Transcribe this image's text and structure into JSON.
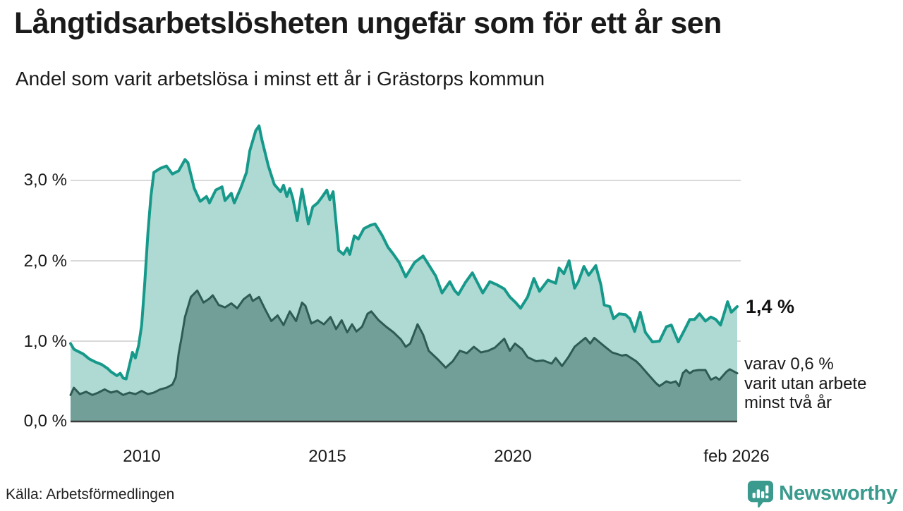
{
  "header": {
    "title": "Långtidsarbetslösheten ungefär som för ett år sen",
    "subtitle": "Andel som varit arbetslösa i minst ett år i Grästorps kommun"
  },
  "annotations": {
    "total_value_label": "1,4 %",
    "subset_line1": "varav 0,6 %",
    "subset_line2": "varit utan arbete",
    "subset_line3": "minst två år"
  },
  "footer": {
    "source": "Källa: Arbetsförmedlingen",
    "brand_name": "Newsworthy",
    "brand_icon": "speech-bubble-bar-chart",
    "brand_color": "#399a8d"
  },
  "colors": {
    "background": "#ffffff",
    "text": "#1a1a1a",
    "gridline": "#d9d9d9",
    "baseline": "#3a3a3a",
    "series1_line": "#16998a",
    "series1_fill": "#aedad3",
    "series2_line": "#2e5b54",
    "series2_fill": "#72a099"
  },
  "chart_data": {
    "type": "area",
    "title": "Långtidsarbetslösheten ungefär som för ett år sen",
    "subtitle": "Andel som varit arbetslösa i minst ett år i Grästorps kommun",
    "unit": "%",
    "grid": true,
    "legend": "none (annotated at line ends)",
    "x_axis": {
      "range": [
        2008.08,
        2026.08
      ],
      "tick_values": [
        2010,
        2015,
        2020,
        2026.08
      ],
      "tick_labels": [
        "2010",
        "2015",
        "2020",
        "feb 2026"
      ]
    },
    "y_axis": {
      "range": [
        0,
        3.85
      ],
      "tick_values": [
        0,
        1,
        2,
        3
      ],
      "tick_labels": [
        "0,0 %",
        "1,0 %",
        "2,0 %",
        "3,0 %"
      ]
    },
    "series": [
      {
        "name": "Arbetslösa minst ett år",
        "line_color": "#16998a",
        "fill_color": "#aedad3",
        "line_width": 4,
        "end_value": 1.4,
        "end_label": "1,4 %",
        "points": [
          [
            2008.08,
            0.97
          ],
          [
            2008.17,
            0.9
          ],
          [
            2008.25,
            0.88
          ],
          [
            2008.42,
            0.84
          ],
          [
            2008.58,
            0.78
          ],
          [
            2008.75,
            0.74
          ],
          [
            2008.92,
            0.71
          ],
          [
            2009.08,
            0.66
          ],
          [
            2009.17,
            0.62
          ],
          [
            2009.33,
            0.57
          ],
          [
            2009.42,
            0.6
          ],
          [
            2009.5,
            0.54
          ],
          [
            2009.58,
            0.53
          ],
          [
            2009.67,
            0.7
          ],
          [
            2009.75,
            0.86
          ],
          [
            2009.83,
            0.79
          ],
          [
            2009.92,
            0.95
          ],
          [
            2010.0,
            1.2
          ],
          [
            2010.08,
            1.7
          ],
          [
            2010.17,
            2.35
          ],
          [
            2010.25,
            2.8
          ],
          [
            2010.33,
            3.1
          ],
          [
            2010.5,
            3.15
          ],
          [
            2010.67,
            3.18
          ],
          [
            2010.83,
            3.08
          ],
          [
            2011.0,
            3.12
          ],
          [
            2011.17,
            3.26
          ],
          [
            2011.25,
            3.22
          ],
          [
            2011.42,
            2.9
          ],
          [
            2011.58,
            2.74
          ],
          [
            2011.75,
            2.8
          ],
          [
            2011.83,
            2.72
          ],
          [
            2012.0,
            2.88
          ],
          [
            2012.17,
            2.92
          ],
          [
            2012.25,
            2.75
          ],
          [
            2012.42,
            2.84
          ],
          [
            2012.5,
            2.72
          ],
          [
            2012.67,
            2.9
          ],
          [
            2012.83,
            3.1
          ],
          [
            2012.92,
            3.37
          ],
          [
            2013.08,
            3.62
          ],
          [
            2013.17,
            3.68
          ],
          [
            2013.25,
            3.5
          ],
          [
            2013.42,
            3.18
          ],
          [
            2013.58,
            2.95
          ],
          [
            2013.75,
            2.86
          ],
          [
            2013.83,
            2.94
          ],
          [
            2013.92,
            2.8
          ],
          [
            2014.0,
            2.9
          ],
          [
            2014.08,
            2.78
          ],
          [
            2014.2,
            2.5
          ],
          [
            2014.33,
            2.89
          ],
          [
            2014.5,
            2.46
          ],
          [
            2014.62,
            2.67
          ],
          [
            2014.75,
            2.72
          ],
          [
            2014.88,
            2.8
          ],
          [
            2015.0,
            2.88
          ],
          [
            2015.08,
            2.76
          ],
          [
            2015.17,
            2.86
          ],
          [
            2015.32,
            2.13
          ],
          [
            2015.45,
            2.08
          ],
          [
            2015.55,
            2.16
          ],
          [
            2015.62,
            2.08
          ],
          [
            2015.74,
            2.31
          ],
          [
            2015.85,
            2.27
          ],
          [
            2016.0,
            2.4
          ],
          [
            2016.17,
            2.44
          ],
          [
            2016.3,
            2.46
          ],
          [
            2016.5,
            2.31
          ],
          [
            2016.65,
            2.17
          ],
          [
            2016.8,
            2.08
          ],
          [
            2016.95,
            1.98
          ],
          [
            2017.13,
            1.8
          ],
          [
            2017.37,
            1.98
          ],
          [
            2017.6,
            2.06
          ],
          [
            2017.75,
            1.95
          ],
          [
            2017.94,
            1.81
          ],
          [
            2018.11,
            1.6
          ],
          [
            2018.32,
            1.74
          ],
          [
            2018.45,
            1.63
          ],
          [
            2018.55,
            1.58
          ],
          [
            2018.74,
            1.73
          ],
          [
            2018.93,
            1.85
          ],
          [
            2019.12,
            1.68
          ],
          [
            2019.21,
            1.6
          ],
          [
            2019.4,
            1.74
          ],
          [
            2019.6,
            1.7
          ],
          [
            2019.79,
            1.65
          ],
          [
            2019.94,
            1.55
          ],
          [
            2020.1,
            1.48
          ],
          [
            2020.23,
            1.41
          ],
          [
            2020.42,
            1.55
          ],
          [
            2020.59,
            1.78
          ],
          [
            2020.74,
            1.62
          ],
          [
            2020.97,
            1.76
          ],
          [
            2021.18,
            1.72
          ],
          [
            2021.27,
            1.91
          ],
          [
            2021.4,
            1.84
          ],
          [
            2021.54,
            2.0
          ],
          [
            2021.69,
            1.66
          ],
          [
            2021.79,
            1.74
          ],
          [
            2021.94,
            1.93
          ],
          [
            2022.07,
            1.82
          ],
          [
            2022.26,
            1.94
          ],
          [
            2022.4,
            1.7
          ],
          [
            2022.49,
            1.45
          ],
          [
            2022.64,
            1.43
          ],
          [
            2022.74,
            1.28
          ],
          [
            2022.89,
            1.34
          ],
          [
            2023.06,
            1.33
          ],
          [
            2023.18,
            1.28
          ],
          [
            2023.31,
            1.12
          ],
          [
            2023.46,
            1.36
          ],
          [
            2023.6,
            1.11
          ],
          [
            2023.79,
            0.99
          ],
          [
            2023.98,
            1.0
          ],
          [
            2024.17,
            1.18
          ],
          [
            2024.3,
            1.2
          ],
          [
            2024.49,
            0.99
          ],
          [
            2024.68,
            1.16
          ],
          [
            2024.8,
            1.27
          ],
          [
            2024.93,
            1.27
          ],
          [
            2025.06,
            1.34
          ],
          [
            2025.22,
            1.25
          ],
          [
            2025.37,
            1.3
          ],
          [
            2025.5,
            1.27
          ],
          [
            2025.63,
            1.2
          ],
          [
            2025.82,
            1.49
          ],
          [
            2025.92,
            1.36
          ],
          [
            2026.08,
            1.43
          ]
        ]
      },
      {
        "name": "Varav utan arbete minst två år",
        "line_color": "#2e5b54",
        "fill_color": "#72a099",
        "line_width": 3,
        "end_value": 0.6,
        "end_label": "varav 0,6 % varit utan arbete minst två år",
        "points": [
          [
            2008.08,
            0.33
          ],
          [
            2008.17,
            0.42
          ],
          [
            2008.33,
            0.34
          ],
          [
            2008.5,
            0.37
          ],
          [
            2008.67,
            0.33
          ],
          [
            2008.83,
            0.36
          ],
          [
            2009.0,
            0.4
          ],
          [
            2009.17,
            0.36
          ],
          [
            2009.33,
            0.38
          ],
          [
            2009.5,
            0.33
          ],
          [
            2009.67,
            0.36
          ],
          [
            2009.83,
            0.34
          ],
          [
            2010.0,
            0.38
          ],
          [
            2010.17,
            0.34
          ],
          [
            2010.33,
            0.36
          ],
          [
            2010.5,
            0.4
          ],
          [
            2010.67,
            0.42
          ],
          [
            2010.83,
            0.46
          ],
          [
            2010.92,
            0.55
          ],
          [
            2011.0,
            0.85
          ],
          [
            2011.08,
            1.05
          ],
          [
            2011.17,
            1.3
          ],
          [
            2011.33,
            1.55
          ],
          [
            2011.5,
            1.63
          ],
          [
            2011.67,
            1.48
          ],
          [
            2011.83,
            1.53
          ],
          [
            2011.92,
            1.57
          ],
          [
            2012.08,
            1.45
          ],
          [
            2012.25,
            1.42
          ],
          [
            2012.42,
            1.47
          ],
          [
            2012.58,
            1.41
          ],
          [
            2012.75,
            1.52
          ],
          [
            2012.92,
            1.58
          ],
          [
            2013.0,
            1.5
          ],
          [
            2013.17,
            1.55
          ],
          [
            2013.33,
            1.4
          ],
          [
            2013.5,
            1.25
          ],
          [
            2013.67,
            1.32
          ],
          [
            2013.83,
            1.2
          ],
          [
            2014.0,
            1.37
          ],
          [
            2014.17,
            1.25
          ],
          [
            2014.33,
            1.48
          ],
          [
            2014.42,
            1.44
          ],
          [
            2014.58,
            1.22
          ],
          [
            2014.75,
            1.26
          ],
          [
            2014.92,
            1.21
          ],
          [
            2015.1,
            1.3
          ],
          [
            2015.25,
            1.15
          ],
          [
            2015.4,
            1.26
          ],
          [
            2015.55,
            1.11
          ],
          [
            2015.68,
            1.21
          ],
          [
            2015.8,
            1.12
          ],
          [
            2015.95,
            1.18
          ],
          [
            2016.1,
            1.34
          ],
          [
            2016.2,
            1.37
          ],
          [
            2016.4,
            1.26
          ],
          [
            2016.6,
            1.18
          ],
          [
            2016.8,
            1.11
          ],
          [
            2017.0,
            1.02
          ],
          [
            2017.13,
            0.93
          ],
          [
            2017.25,
            0.97
          ],
          [
            2017.45,
            1.21
          ],
          [
            2017.6,
            1.08
          ],
          [
            2017.75,
            0.88
          ],
          [
            2017.98,
            0.78
          ],
          [
            2018.21,
            0.67
          ],
          [
            2018.4,
            0.75
          ],
          [
            2018.59,
            0.88
          ],
          [
            2018.78,
            0.85
          ],
          [
            2018.97,
            0.93
          ],
          [
            2019.16,
            0.86
          ],
          [
            2019.35,
            0.88
          ],
          [
            2019.54,
            0.92
          ],
          [
            2019.79,
            1.03
          ],
          [
            2019.94,
            0.88
          ],
          [
            2020.08,
            0.97
          ],
          [
            2020.27,
            0.9
          ],
          [
            2020.42,
            0.8
          ],
          [
            2020.65,
            0.75
          ],
          [
            2020.84,
            0.76
          ],
          [
            2021.07,
            0.72
          ],
          [
            2021.18,
            0.79
          ],
          [
            2021.35,
            0.69
          ],
          [
            2021.52,
            0.8
          ],
          [
            2021.69,
            0.93
          ],
          [
            2021.98,
            1.04
          ],
          [
            2022.11,
            0.97
          ],
          [
            2022.22,
            1.04
          ],
          [
            2022.51,
            0.93
          ],
          [
            2022.7,
            0.86
          ],
          [
            2022.83,
            0.84
          ],
          [
            2022.97,
            0.82
          ],
          [
            2023.08,
            0.83
          ],
          [
            2023.35,
            0.75
          ],
          [
            2023.46,
            0.7
          ],
          [
            2023.65,
            0.6
          ],
          [
            2023.88,
            0.48
          ],
          [
            2023.98,
            0.44
          ],
          [
            2024.17,
            0.5
          ],
          [
            2024.28,
            0.48
          ],
          [
            2024.42,
            0.5
          ],
          [
            2024.51,
            0.44
          ],
          [
            2024.61,
            0.6
          ],
          [
            2024.7,
            0.64
          ],
          [
            2024.8,
            0.6
          ],
          [
            2024.89,
            0.63
          ],
          [
            2025.03,
            0.64
          ],
          [
            2025.22,
            0.64
          ],
          [
            2025.37,
            0.52
          ],
          [
            2025.5,
            0.55
          ],
          [
            2025.6,
            0.52
          ],
          [
            2025.79,
            0.62
          ],
          [
            2025.88,
            0.65
          ],
          [
            2026.08,
            0.6
          ]
        ]
      }
    ]
  }
}
